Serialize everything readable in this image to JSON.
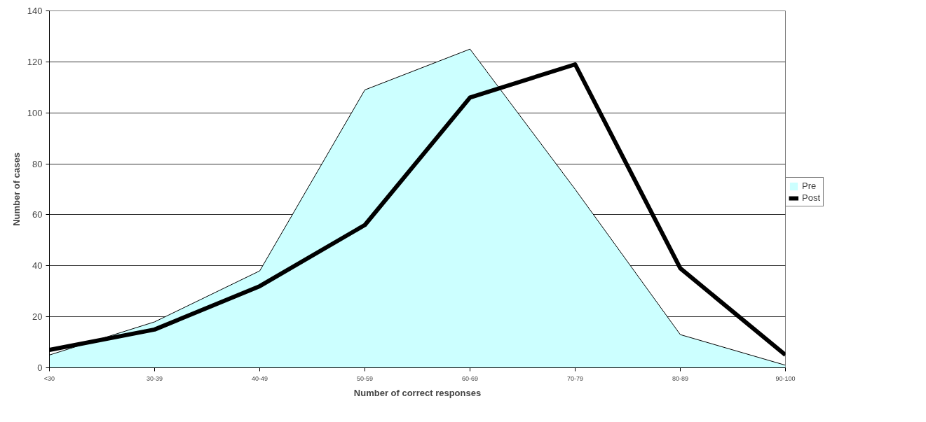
{
  "chart_data": {
    "type": "area",
    "xlabel": "Number of correct responses",
    "ylabel": "Number of cases",
    "categories": [
      "<30",
      "30-39",
      "40-49",
      "50-59",
      "60-69",
      "70-79",
      "80-89",
      "90-100"
    ],
    "series": [
      {
        "name": "Pre",
        "color": "#ccffff",
        "values": [
          5,
          18,
          38,
          109,
          125,
          70,
          13,
          1
        ]
      },
      {
        "name": "Post",
        "type": "line",
        "color": "#000000",
        "values": [
          7,
          15,
          32,
          56,
          106,
          119,
          39,
          5
        ]
      }
    ],
    "ylim": [
      0,
      140
    ],
    "yticks": [
      0,
      20,
      40,
      60,
      80,
      100,
      120,
      140
    ],
    "grid": "y",
    "legend": "right"
  }
}
